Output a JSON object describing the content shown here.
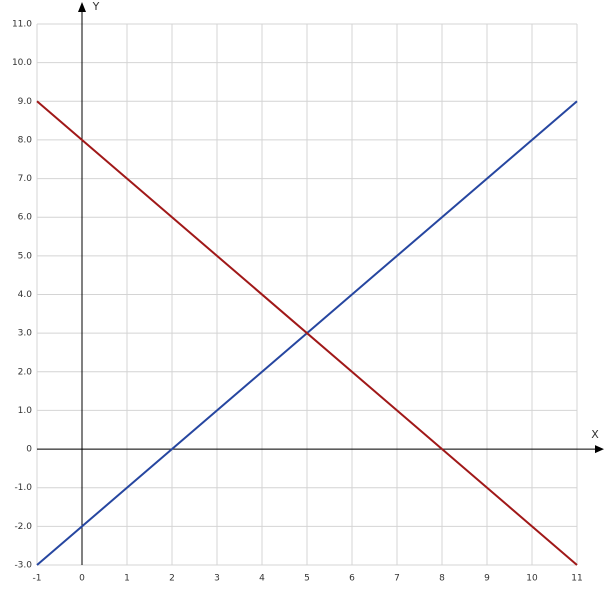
{
  "chart_data": {
    "type": "line",
    "x_label": "X",
    "y_label": "Y",
    "x": [
      -1,
      11
    ],
    "series": [
      {
        "color": "#2646a0",
        "values": [
          -3,
          9
        ]
      },
      {
        "color": "#a01818",
        "values": [
          9,
          -3
        ]
      }
    ],
    "xlim": [
      -1,
      11
    ],
    "ylim": [
      -3,
      11
    ],
    "xticks": [
      -1,
      0,
      1,
      2,
      3,
      4,
      5,
      6,
      7,
      8,
      9,
      10,
      11
    ],
    "yticks": [
      {
        "value": -3,
        "label": "-3.0"
      },
      {
        "value": -2,
        "label": "-2.0"
      },
      {
        "value": -1,
        "label": "-1.0"
      },
      0,
      {
        "value": 1,
        "label": "1.0"
      },
      {
        "value": 2,
        "label": "2.0"
      },
      {
        "value": 3,
        "label": "3.0"
      },
      {
        "value": 4,
        "label": "4.0"
      },
      {
        "value": 5,
        "label": "5.0"
      },
      {
        "value": 6,
        "label": "6.0"
      },
      {
        "value": 7,
        "label": "7.0"
      },
      {
        "value": 8,
        "label": "8.0"
      },
      {
        "value": 9,
        "label": "9.0"
      },
      {
        "value": 10,
        "label": "10.0"
      },
      {
        "value": 11,
        "label": "11.0"
      }
    ],
    "grid": true
  }
}
